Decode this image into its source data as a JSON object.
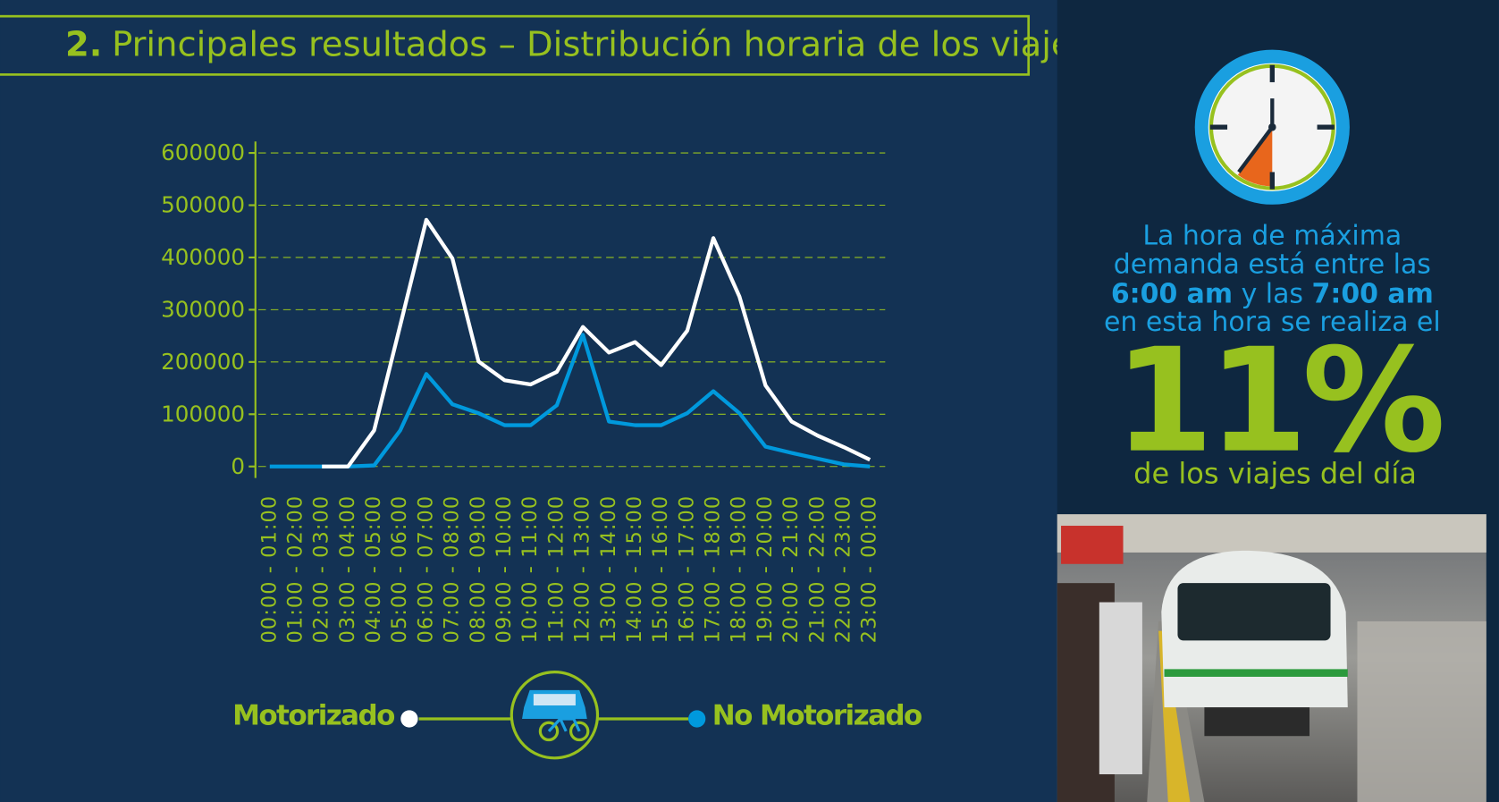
{
  "chart_data": {
    "type": "line",
    "title_number": "2.",
    "title": "Principales resultados – Distribución horaria de los viajes",
    "categories": [
      "00:00 - 01:00",
      "01:00 - 02:00",
      "02:00 - 03:00",
      "03:00 - 04:00",
      "04:00 - 05:00",
      "05:00 - 06:00",
      "06:00 - 07:00",
      "07:00 - 08:00",
      "08:00 - 09:00",
      "09:00 - 10:00",
      "10:00 - 11:00",
      "11:00 - 12:00",
      "12:00 - 13:00",
      "13:00 - 14:00",
      "14:00 - 15:00",
      "15:00 - 16:00",
      "16:00 - 17:00",
      "17:00 - 18:00",
      "18:00 - 19:00",
      "19:00 - 20:00",
      "20:00 - 21:00",
      "21:00 - 22:00",
      "22:00 - 23:00",
      "23:00 - 00:00"
    ],
    "series": [
      {
        "name": "Motorizado",
        "color": "#ffffff",
        "values": [
          null,
          null,
          0,
          0,
          69000,
          270000,
          472000,
          398000,
          201000,
          165000,
          157000,
          181000,
          267000,
          218000,
          238000,
          194000,
          260000,
          437000,
          325000,
          155000,
          86000,
          59000,
          37000,
          13000
        ]
      },
      {
        "name": "No Motorizado",
        "color": "#0099dd",
        "values": [
          0,
          0,
          0,
          0,
          2000,
          69000,
          177000,
          119000,
          102000,
          79000,
          79000,
          117000,
          252000,
          86000,
          79000,
          79000,
          102000,
          144000,
          102000,
          38000,
          26000,
          15000,
          4000,
          0
        ]
      }
    ],
    "ylim": [
      0,
      600000
    ],
    "yticks": [
      0,
      100000,
      200000,
      300000,
      400000,
      500000,
      600000
    ],
    "grid": true
  },
  "sidebar": {
    "line1": "La hora de máxima",
    "line2": "demanda está entre las",
    "peak_start": "6:00 am",
    "connector": "y las",
    "peak_end": "7:00 am",
    "line4": "en esta hora se realiza el",
    "highlight": "11%",
    "footer": "de los viajes del día"
  }
}
